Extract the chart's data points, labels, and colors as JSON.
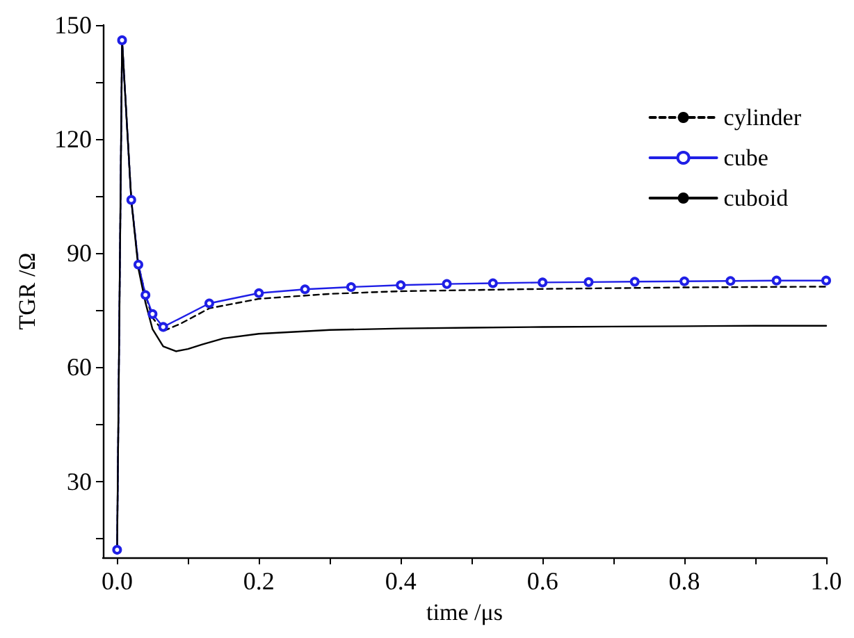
{
  "chart_data": {
    "type": "line",
    "xlabel": "time /μs",
    "ylabel": "TGR /Ω",
    "xlim": [
      -0.02,
      1.0
    ],
    "ylim": [
      10,
      150
    ],
    "xticks": [
      {
        "value": 0,
        "label": "0.0"
      },
      {
        "value": 0.1,
        "label": null
      },
      {
        "value": 0.2,
        "label": "0.2"
      },
      {
        "value": 0.3,
        "label": null
      },
      {
        "value": 0.4,
        "label": "0.4"
      },
      {
        "value": 0.5,
        "label": null
      },
      {
        "value": 0.6,
        "label": "0.6"
      },
      {
        "value": 0.7,
        "label": null
      },
      {
        "value": 0.8,
        "label": "0.8"
      },
      {
        "value": 0.9,
        "label": null
      },
      {
        "value": 1.0,
        "label": "1.0"
      }
    ],
    "yticks": [
      {
        "value": 15,
        "label": null
      },
      30,
      {
        "value": 45,
        "label": null
      },
      60,
      {
        "value": 75,
        "label": null
      },
      90,
      {
        "value": 105,
        "label": null
      },
      120,
      {
        "value": 135,
        "label": null
      },
      150
    ],
    "grid": false,
    "legend": "top right",
    "series": [
      {
        "name": "cylinder",
        "color": "#000000",
        "line_style": "dashed",
        "marker": "none",
        "x": [
          0,
          0.007,
          0.02,
          0.03,
          0.04,
          0.05,
          0.065,
          0.09,
          0.13,
          0.2,
          0.3,
          0.4,
          0.5,
          0.6,
          0.7,
          0.8,
          0.9,
          1.0
        ],
        "values": [
          12,
          146,
          104,
          87,
          79,
          73,
          69.5,
          71.5,
          75.5,
          78,
          79.3,
          80,
          80.3,
          80.6,
          80.8,
          81,
          81.1,
          81.2
        ]
      },
      {
        "name": "cube",
        "color": "#1f1fe6",
        "line_style": "solid",
        "marker": "circle",
        "x": [
          0,
          0.007,
          0.02,
          0.03,
          0.04,
          0.05,
          0.065,
          0.13,
          0.2,
          0.265,
          0.33,
          0.4,
          0.465,
          0.53,
          0.6,
          0.665,
          0.73,
          0.8,
          0.865,
          0.93,
          1.0
        ],
        "values": [
          12,
          146,
          104,
          87,
          79,
          74,
          70.6,
          76.8,
          79.5,
          80.5,
          81.1,
          81.6,
          81.9,
          82.1,
          82.3,
          82.4,
          82.5,
          82.6,
          82.7,
          82.8,
          82.8
        ]
      },
      {
        "name": "cuboid",
        "color": "#000000",
        "line_style": "solid",
        "marker": "none",
        "x": [
          0,
          0.007,
          0.02,
          0.03,
          0.04,
          0.05,
          0.065,
          0.083,
          0.1,
          0.12,
          0.15,
          0.2,
          0.3,
          0.4,
          0.5,
          0.6,
          0.7,
          0.8,
          0.9,
          1.0
        ],
        "values": [
          12,
          146,
          104,
          86,
          77,
          70,
          65.5,
          64.2,
          64.8,
          66,
          67.6,
          68.8,
          69.8,
          70.2,
          70.4,
          70.6,
          70.7,
          70.8,
          70.9,
          70.9
        ]
      }
    ]
  }
}
